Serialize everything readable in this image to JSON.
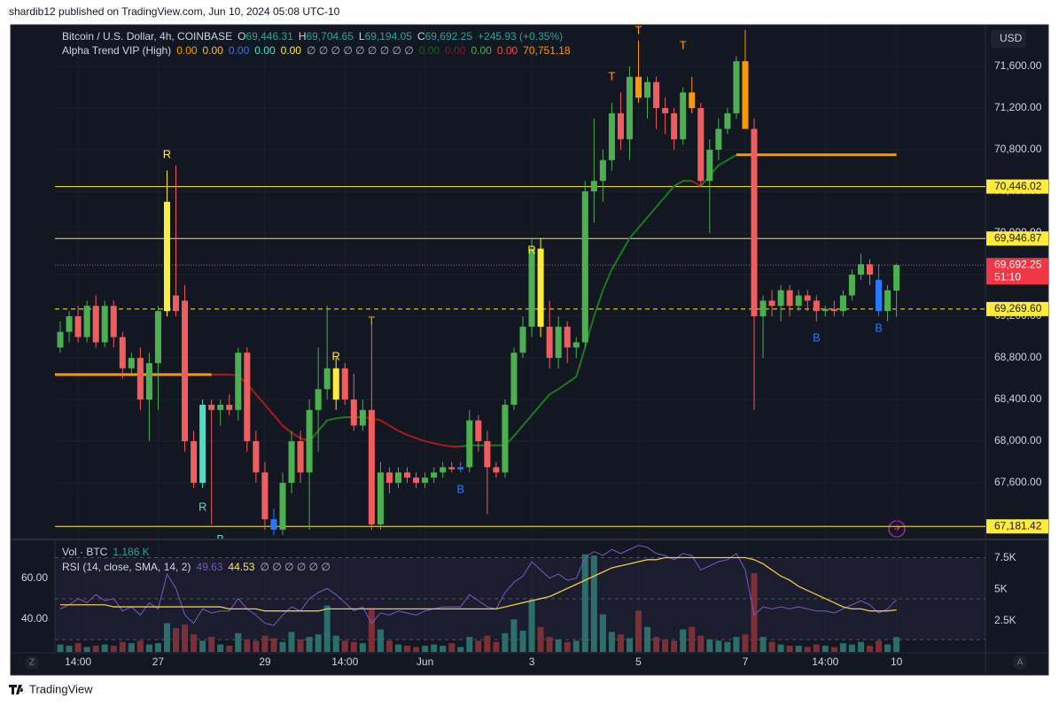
{
  "header": {
    "publisher": "shardib12 published on TradingView.com, Jun 10, 2024 05:08 UTC-10"
  },
  "footer": {
    "brand": "TradingView"
  },
  "ui": {
    "left_button": "Z",
    "right_button": "A"
  },
  "chart_data": [
    {
      "type": "candlestick",
      "symbol": "Bitcoin / U.S. Dollar, 4h, COINBASE",
      "ohlc_labels": [
        {
          "prefix": "O",
          "value": "69,446.31"
        },
        {
          "prefix": "H",
          "value": "69,704.65"
        },
        {
          "prefix": "L",
          "value": "69,194.05"
        },
        {
          "prefix": "C",
          "value": "69,692.25"
        }
      ],
      "change": "+245.93 (+0.35%)",
      "indicator_name": "Alpha Trend VIP (High)",
      "indicator_values": [
        {
          "text": "0.00",
          "color": "#ff9800"
        },
        {
          "text": "0.00",
          "color": "#ffb74d"
        },
        {
          "text": "0.00",
          "color": "#2979ff"
        },
        {
          "text": "0.00",
          "color": "#4de0c4"
        },
        {
          "text": "0.00",
          "color": "#ffeb3b"
        },
        {
          "text": "∅ ∅ ∅ ∅ ∅ ∅ ∅ ∅ ∅",
          "color": "#b2b5be"
        },
        {
          "text": "0.00",
          "color": "#1b5e20"
        },
        {
          "text": "0.00",
          "color": "#8e1b1b"
        },
        {
          "text": "0.00",
          "color": "#4caf50"
        },
        {
          "text": "0.00",
          "color": "#ef5350"
        },
        {
          "text": "70,751.18",
          "color": "#ff9800"
        }
      ],
      "currency": "USD",
      "countdown": "51:10",
      "open": [
        68900,
        69050,
        69200,
        69000,
        69300,
        68950,
        69300,
        69000,
        68700,
        68800,
        68400,
        68750,
        69250,
        69400,
        69350,
        68000,
        67600,
        68350,
        68300,
        68350,
        68300,
        68850,
        68000,
        67700,
        67250,
        67150,
        67600,
        68000,
        67700,
        68300,
        68500,
        68400,
        68700,
        68400,
        68150,
        68300,
        67200,
        67700,
        67600,
        67700,
        67650,
        67600,
        67650,
        67700,
        67750,
        67730,
        67750,
        68200,
        68000,
        67750,
        67700,
        68350,
        68850,
        69100,
        69850,
        69100,
        68800,
        69100,
        68900,
        68950,
        70400,
        70500,
        70700,
        71150,
        70900,
        71500,
        71300,
        71450,
        71200,
        71150,
        70900,
        71350,
        71200,
        70500,
        70800,
        71000,
        71150,
        71650,
        71000,
        69200,
        69350,
        69300,
        69450,
        69300,
        69400,
        69350,
        69250,
        69270,
        69250,
        69400,
        69600,
        69700,
        69550,
        69250,
        69446.31
      ],
      "high": [
        69150,
        69250,
        69300,
        69350,
        69400,
        69350,
        69350,
        69050,
        68850,
        68900,
        68850,
        69300,
        70600,
        70650,
        69500,
        68100,
        68400,
        68400,
        68400,
        68450,
        68900,
        68900,
        68100,
        67800,
        67350,
        67700,
        68100,
        68100,
        68400,
        68900,
        69300,
        68800,
        68750,
        68650,
        68400,
        69150,
        67800,
        67750,
        67750,
        67750,
        67700,
        67700,
        67750,
        67800,
        67800,
        67800,
        68300,
        68250,
        68100,
        67800,
        68400,
        68900,
        69200,
        69950,
        69950,
        69350,
        69200,
        69150,
        69000,
        70500,
        71100,
        70800,
        71250,
        71350,
        71600,
        71850,
        71500,
        71500,
        71300,
        71200,
        71400,
        71500,
        71250,
        70900,
        71100,
        71200,
        71700,
        71950,
        71100,
        69400,
        69450,
        69500,
        69500,
        69450,
        69450,
        69400,
        69300,
        69350,
        69450,
        69650,
        69800,
        69750,
        69700,
        69500,
        69704.65
      ],
      "low": [
        68850,
        68950,
        68950,
        68950,
        68900,
        68900,
        68900,
        68600,
        68650,
        68300,
        68000,
        68300,
        69200,
        69200,
        67900,
        67550,
        67550,
        67200,
        68150,
        68250,
        68200,
        67900,
        67600,
        67150,
        67100,
        67100,
        67500,
        67600,
        67150,
        67900,
        68400,
        68300,
        68350,
        68100,
        68100,
        67150,
        67150,
        67500,
        67550,
        67600,
        67550,
        67550,
        67600,
        67650,
        67700,
        67700,
        67700,
        67900,
        67300,
        67650,
        67650,
        68300,
        68800,
        69000,
        69000,
        68700,
        68700,
        68750,
        68800,
        68900,
        70100,
        70300,
        70600,
        70800,
        70700,
        71250,
        71100,
        71000,
        70950,
        70800,
        70850,
        71150,
        70450,
        70000,
        70700,
        70950,
        71100,
        71000,
        68300,
        68800,
        69200,
        69150,
        69200,
        69250,
        69250,
        69150,
        69200,
        69200,
        69200,
        69350,
        69550,
        69500,
        69200,
        69150,
        69194.05
      ],
      "close": [
        69050,
        69200,
        69000,
        69300,
        68950,
        69300,
        69000,
        68700,
        68800,
        68400,
        68750,
        69250,
        70300,
        69250,
        68000,
        67600,
        68350,
        68300,
        68350,
        68300,
        68850,
        68000,
        67700,
        67250,
        67150,
        67600,
        68000,
        67700,
        68300,
        68500,
        68700,
        68700,
        68400,
        68150,
        68300,
        67200,
        67700,
        67600,
        67700,
        67650,
        67600,
        67650,
        67700,
        67750,
        67730,
        67750,
        68200,
        68000,
        67750,
        67700,
        68350,
        68850,
        69100,
        69850,
        69100,
        68800,
        69100,
        68900,
        68950,
        70400,
        70500,
        70700,
        71150,
        70900,
        71500,
        71300,
        71450,
        71200,
        71150,
        70900,
        71350,
        71200,
        70500,
        70800,
        71000,
        71150,
        71650,
        71000,
        69200,
        69350,
        69300,
        69450,
        69300,
        69400,
        69350,
        69250,
        69270,
        69250,
        69400,
        69600,
        69700,
        69600,
        69250,
        69450,
        69692.25
      ],
      "up_color": "#4caf50",
      "down_color": "#f05d5e",
      "candle_colors": {
        "12": "#ffeb3b",
        "16": "#4de0c4",
        "24": "#2979ff",
        "31": "#ffeb3b",
        "45": "#2979ff",
        "54": "#ffeb3b",
        "65": "#ff9800",
        "71": "#ff9800",
        "77": "#ff9800",
        "92": "#2979ff"
      },
      "trend": {
        "values": [
          null,
          null,
          null,
          null,
          null,
          null,
          null,
          null,
          null,
          null,
          null,
          null,
          null,
          null,
          null,
          null,
          null,
          68640,
          68640,
          68640,
          68630,
          68550,
          68450,
          68350,
          68250,
          68150,
          68080,
          68030,
          68000,
          68100,
          68200,
          68220,
          68230,
          68230,
          68230,
          68220,
          68200,
          68150,
          68100,
          68060,
          68030,
          68000,
          67980,
          67960,
          67950,
          67950,
          67960,
          67960,
          67960,
          67960,
          67960,
          68050,
          68150,
          68250,
          68350,
          68450,
          68500,
          68560,
          68620,
          68900,
          69200,
          69450,
          69650,
          69800,
          69950,
          70050,
          70150,
          70250,
          70350,
          70450,
          70500,
          70500,
          70450,
          70550,
          70650,
          70700,
          70750,
          70750,
          null,
          null,
          null,
          null,
          null,
          null,
          null,
          null,
          null,
          null,
          null,
          null,
          null,
          null,
          null,
          null,
          null
        ],
        "up_color": "#1b7a1f",
        "down_color": "#a61b1b"
      },
      "segments": [
        {
          "value": 68640,
          "x": [
            -0.6,
            17
          ],
          "color": "#ff9800"
        },
        {
          "value": 70751.18,
          "x": [
            76,
            94
          ],
          "color": "#ff9800"
        }
      ],
      "levels": [
        {
          "value": 70446.02,
          "label": "70,446.02",
          "color": "#ffeb3b",
          "style": "solid"
        },
        {
          "value": 69946.87,
          "label": "69,946.87",
          "color": "#ffeb3b",
          "style": "solid"
        },
        {
          "value": 69269.6,
          "label": "69,269.60",
          "color": "#ffeb3b",
          "style": "dashed"
        },
        {
          "value": 67181.42,
          "label": "67,181.42",
          "color": "#ffeb3b",
          "style": "solid"
        }
      ],
      "last_price": {
        "value": 69692.25,
        "label": "69,692.25",
        "color": "#f23645"
      },
      "signals": [
        {
          "label": "R",
          "index": 12,
          "price": 70750,
          "color": "#ffeb3b"
        },
        {
          "label": "R",
          "index": 16,
          "price": 67362,
          "color": "#4de0c4"
        },
        {
          "label": "B",
          "index": 18,
          "price": 67050,
          "color": "#4de0c4"
        },
        {
          "label": "R",
          "index": 31,
          "price": 68809,
          "color": "#ffeb3b"
        },
        {
          "label": "T",
          "index": 35,
          "price": 69149,
          "color": "#ff9800"
        },
        {
          "label": "B",
          "index": 45,
          "price": 67532,
          "color": "#2979ff"
        },
        {
          "label": "R",
          "index": 53,
          "price": 69830,
          "color": "#ffeb3b"
        },
        {
          "label": "T",
          "index": 62,
          "price": 71498,
          "color": "#ff9800"
        },
        {
          "label": "T",
          "index": 65,
          "price": 71940,
          "color": "#ff9800"
        },
        {
          "label": "T",
          "index": 70,
          "price": 71796,
          "color": "#ff9800"
        },
        {
          "label": "B",
          "index": 85,
          "price": 68987,
          "color": "#2979ff"
        },
        {
          "label": "B",
          "index": 92,
          "price": 69081,
          "color": "#2979ff"
        }
      ],
      "xlim": [
        -0.6,
        104
      ],
      "xticks": [
        {
          "value": 2,
          "label": "14:00"
        },
        {
          "value": 11,
          "label": "27"
        },
        {
          "value": 23,
          "label": "29"
        },
        {
          "value": 32,
          "label": "14:00"
        },
        {
          "value": 41,
          "label": "Jun"
        },
        {
          "value": 53,
          "label": "3"
        },
        {
          "value": 65,
          "label": "5"
        },
        {
          "value": 77,
          "label": "7"
        },
        {
          "value": 86,
          "label": "14:00"
        },
        {
          "value": 94,
          "label": "10"
        }
      ],
      "ylim": [
        67073,
        72000
      ],
      "yticks": [
        {
          "value": 67600,
          "label": "67,600.00"
        },
        {
          "value": 68000,
          "label": "68,000.00"
        },
        {
          "value": 68400,
          "label": "68,400.00"
        },
        {
          "value": 68800,
          "label": "68,800.00"
        },
        {
          "value": 69200,
          "label": "69,200.00"
        },
        {
          "value": 69600,
          "label": "69,600.00"
        },
        {
          "value": 70000,
          "label": "70,000.00"
        },
        {
          "value": 70400,
          "label": "70,400.00"
        },
        {
          "value": 70800,
          "label": "70,800.00"
        },
        {
          "value": 71200,
          "label": "71,200.00"
        },
        {
          "value": 71600,
          "label": "71,600.00"
        }
      ],
      "grid": true
    },
    {
      "type": "volume-rsi",
      "volume_title": "Vol · BTC",
      "volume_value": "1.186 K",
      "rsi_title": "RSI (14, close, SMA, 14, 2)",
      "rsi_value_labels": [
        {
          "text": "49.63",
          "color": "#7e57c2"
        },
        {
          "text": "44.53",
          "color": "#ffeb3b"
        },
        {
          "text": "∅ ∅ ∅ ∅ ∅ ∅",
          "color": "#b2b5be"
        }
      ],
      "volume": [
        600,
        500,
        700,
        400,
        500,
        600,
        500,
        800,
        700,
        900,
        600,
        700,
        2300,
        1900,
        2200,
        1400,
        900,
        1200,
        600,
        500,
        1500,
        1000,
        900,
        1300,
        1100,
        800,
        1600,
        1000,
        1200,
        1400,
        3700,
        1300,
        900,
        800,
        700,
        3500,
        1800,
        900,
        600,
        500,
        400,
        500,
        600,
        500,
        700,
        400,
        1200,
        900,
        1300,
        800,
        1500,
        2600,
        1700,
        4200,
        2000,
        1200,
        1000,
        800,
        900,
        7800,
        7700,
        3000,
        1600,
        1400,
        1100,
        3300,
        2000,
        1200,
        1000,
        900,
        1800,
        2000,
        1300,
        1000,
        900,
        800,
        1200,
        1400,
        6300,
        1200,
        800,
        600,
        500,
        500,
        400,
        600,
        500,
        400,
        700,
        600,
        800,
        500,
        900,
        600,
        1186
      ],
      "volume_up_color": "#2b6f6b",
      "volume_down_color": "#7c2f37",
      "volume_ylim": [
        0,
        8840
      ],
      "volume_ticks": [
        {
          "value": 2500,
          "label": "2.5K"
        },
        {
          "value": 5000,
          "label": "5K"
        },
        {
          "value": 7500,
          "label": "7.5K"
        }
      ],
      "rsi": {
        "color": "#7e57c2",
        "values": [
          45,
          47,
          50,
          48,
          52,
          49,
          50,
          44,
          46,
          42,
          48,
          45,
          62,
          55,
          42,
          38,
          45,
          43,
          44,
          44,
          50,
          45,
          42,
          38,
          37,
          42,
          46,
          44,
          50,
          53,
          55,
          52,
          48,
          44,
          46,
          38,
          43,
          42,
          44,
          43,
          42,
          44,
          45,
          46,
          46,
          46,
          52,
          49,
          46,
          45,
          53,
          58,
          61,
          68,
          64,
          60,
          62,
          59,
          60,
          70,
          73,
          71,
          74,
          72,
          74,
          76,
          75,
          72,
          71,
          69,
          72,
          71,
          64,
          66,
          68,
          69,
          72,
          64,
          42,
          46,
          45,
          46,
          45,
          46,
          45,
          44,
          44,
          43,
          45,
          47,
          49,
          47,
          43,
          45,
          49.63
        ]
      },
      "rsi_sma": {
        "color": "#f0c94a",
        "values": [
          47,
          47,
          47,
          47,
          47,
          47,
          46,
          46,
          46,
          46,
          46,
          46,
          46,
          46,
          46,
          46,
          46,
          46,
          46,
          45,
          45,
          45,
          45,
          44,
          44,
          44,
          44,
          44,
          44,
          44,
          45,
          45,
          45,
          45,
          45,
          45,
          45,
          45,
          45,
          45,
          45,
          45,
          45,
          45,
          45,
          45,
          45,
          45,
          45,
          45,
          46,
          47,
          48,
          49,
          50,
          51,
          53,
          55,
          57,
          59,
          61,
          63,
          65,
          66,
          67,
          68,
          69,
          69,
          70,
          70,
          70,
          70,
          70,
          70,
          70,
          70,
          70,
          70,
          69,
          67,
          64,
          61,
          59,
          56,
          54,
          52,
          50,
          48,
          46,
          45,
          45,
          44,
          44,
          44,
          44.53
        ]
      },
      "bands": [
        70,
        50,
        30
      ],
      "ylim": [
        24,
        78
      ],
      "yticks": [
        {
          "value": 40,
          "label": "40.00"
        },
        {
          "value": 60,
          "label": "60.00"
        }
      ]
    }
  ]
}
